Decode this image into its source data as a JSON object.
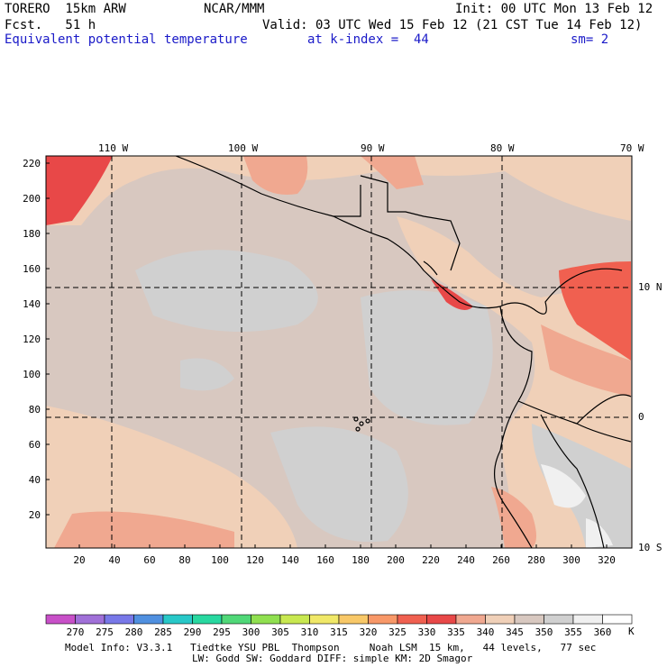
{
  "header": {
    "model": "TORERO  15km ARW",
    "center": "NCAR/MMM",
    "init": "Init: 00 UTC Mon 13 Feb 12",
    "fcst": "Fcst.   51 h",
    "valid": "Valid: 03 UTC Wed 15 Feb 12 (21 CST Tue 14 Feb 12)",
    "field": "Equivalent potential temperature",
    "level": "at k-index =  44",
    "smooth": "sm= 2"
  },
  "map": {
    "lon_labels": [
      "110 W",
      "100 W",
      "90 W",
      "80 W",
      "70 W"
    ],
    "lat_labels": [
      "10 N",
      "0",
      "10 S"
    ],
    "y_ticks": [
      "220",
      "200",
      "180",
      "160",
      "140",
      "120",
      "100",
      "80",
      "60",
      "40",
      "20"
    ],
    "x_ticks": [
      "20",
      "40",
      "60",
      "80",
      "100",
      "120",
      "140",
      "160",
      "180",
      "200",
      "220",
      "240",
      "260",
      "280",
      "300",
      "320"
    ]
  },
  "colorbar": {
    "labels": [
      "270",
      "275",
      "280",
      "285",
      "290",
      "295",
      "300",
      "305",
      "310",
      "315",
      "320",
      "325",
      "330",
      "335",
      "340",
      "345",
      "350",
      "355",
      "360"
    ],
    "unit": "K",
    "colors": [
      "#c850c8",
      "#a070d8",
      "#7878e8",
      "#5090e0",
      "#28c8c8",
      "#28d8a0",
      "#50d878",
      "#90e050",
      "#c8e850",
      "#f0e868",
      "#f8c868",
      "#f89868",
      "#f06050",
      "#e84848",
      "#f0a890",
      "#f0d0b8",
      "#d8c8c0",
      "#d0d0d0",
      "#f0f0f0",
      "#ffffff"
    ]
  },
  "footer": {
    "line1": "Model Info: V3.3.1   Tiedtke YSU PBL  Thompson     Noah LSM  15 km,   44 levels,   77 sec",
    "line2": "LW: Godd SW: Goddard DIFF: simple KM: 2D Smagor"
  }
}
